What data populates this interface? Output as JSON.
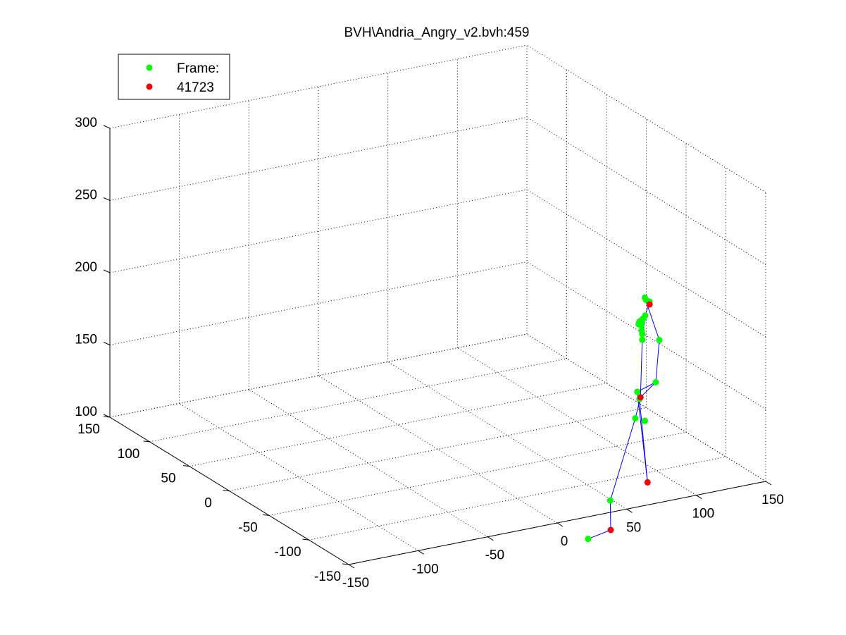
{
  "chart_data": {
    "type": "scatter3d",
    "title": "BVH\\Andria_Angry_v2.bvh:459",
    "legend": {
      "placement": "top-left",
      "entries": [
        {
          "label": "Frame:",
          "color": "#00ff00"
        },
        {
          "label": "41723",
          "color": "#ff0000"
        }
      ]
    },
    "grid": true,
    "colors": {
      "joint": "#00ff00",
      "end_effector": "#ff0000",
      "bone": "#0000ff"
    },
    "axes": {
      "x": {
        "lim": [
          -150,
          150
        ],
        "ticks": [
          -150,
          -100,
          -50,
          0,
          50,
          100,
          150
        ],
        "tick_labels": [
          "-150",
          "-100",
          "-50",
          "0",
          "50",
          "100",
          "150"
        ]
      },
      "y": {
        "lim": [
          -150,
          150
        ],
        "ticks": [
          -150,
          -100,
          -50,
          0,
          50,
          100,
          150
        ],
        "tick_labels": [
          "-150",
          "-100",
          "-50",
          "0",
          "50",
          "100",
          "150"
        ]
      },
      "z": {
        "lim": [
          100,
          300
        ],
        "ticks": [
          100,
          150,
          200,
          250,
          300
        ],
        "tick_labels": [
          "100",
          "150",
          "200",
          "250",
          "300"
        ]
      }
    },
    "series": [
      {
        "role": "joints",
        "color": "#00ff00",
        "points": [
          [
            112,
            -55,
            137
          ],
          [
            117,
            -49,
            129
          ],
          [
            101,
            -76,
            193
          ],
          [
            106,
            -71,
            186
          ],
          [
            102,
            -75,
            194
          ],
          [
            103,
            -74,
            194
          ],
          [
            105,
            -73,
            194
          ],
          [
            107,
            -71,
            194
          ],
          [
            104,
            -74,
            193
          ],
          [
            103,
            -75,
            192
          ],
          [
            104,
            -74,
            191
          ],
          [
            104,
            -74,
            191
          ],
          [
            125,
            -60,
            172
          ],
          [
            119,
            -66,
            146
          ],
          [
            94,
            -84,
            132
          ],
          [
            110,
            -68,
            207
          ],
          [
            115,
            -61,
            202
          ],
          [
            118,
            -60,
            200
          ],
          [
            116,
            -58,
            190
          ],
          [
            107,
            -70,
            183
          ],
          [
            107,
            -70,
            179
          ],
          [
            102,
            -82,
            128
          ],
          [
            64,
            -105,
            88
          ],
          [
            60,
            -84,
            55
          ]
        ]
      },
      {
        "role": "end_effectors",
        "color": "#ff0000",
        "points": [
          [
            118,
            -60,
            198
          ],
          [
            100,
            -80,
            144
          ],
          [
            132,
            -33,
            63
          ],
          [
            70,
            -95,
            63
          ]
        ]
      },
      {
        "role": "bones",
        "color": "#0000ff",
        "segments": [
          [
            [
              118,
              -60,
              198
            ],
            [
              110,
              -68,
              207
            ]
          ],
          [
            [
              110,
              -68,
              207
            ],
            [
              115,
              -61,
              202
            ]
          ],
          [
            [
              115,
              -61,
              202
            ],
            [
              118,
              -60,
              200
            ]
          ],
          [
            [
              118,
              -60,
              200
            ],
            [
              116,
              -58,
              190
            ]
          ],
          [
            [
              116,
              -58,
              190
            ],
            [
              107,
              -70,
              179
            ]
          ],
          [
            [
              107,
              -70,
              179
            ],
            [
              106,
              -71,
              186
            ]
          ],
          [
            [
              106,
              -71,
              186
            ],
            [
              101,
              -76,
              193
            ]
          ],
          [
            [
              110,
              -68,
              207
            ],
            [
              125,
              -60,
              172
            ]
          ],
          [
            [
              125,
              -60,
              172
            ],
            [
              119,
              -66,
              146
            ]
          ],
          [
            [
              119,
              -66,
              146
            ],
            [
              112,
              -55,
              137
            ]
          ],
          [
            [
              107,
              -70,
              179
            ],
            [
              100,
              -80,
              144
            ]
          ],
          [
            [
              100,
              -80,
              144
            ],
            [
              94,
              -84,
              132
            ]
          ],
          [
            [
              100,
              -80,
              144
            ],
            [
              119,
              -66,
              146
            ]
          ],
          [
            [
              94,
              -84,
              132
            ],
            [
              64,
              -105,
              88
            ]
          ],
          [
            [
              64,
              -105,
              88
            ],
            [
              70,
              -95,
              63
            ]
          ],
          [
            [
              70,
              -95,
              63
            ],
            [
              60,
              -84,
              55
            ]
          ],
          [
            [
              112,
              -55,
              137
            ],
            [
              132,
              -33,
              63
            ]
          ],
          [
            [
              132,
              -33,
              63
            ],
            [
              117,
              -49,
              129
            ]
          ]
        ]
      }
    ]
  }
}
